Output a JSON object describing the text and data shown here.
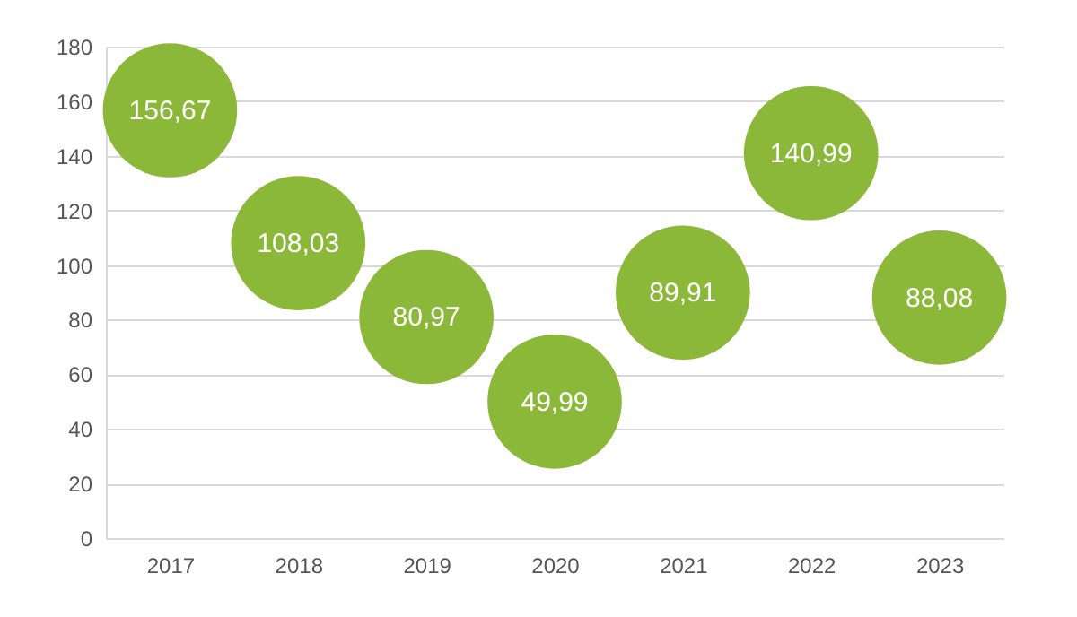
{
  "chart_data": {
    "type": "scatter",
    "categories": [
      "2017",
      "2018",
      "2019",
      "2020",
      "2021",
      "2022",
      "2023"
    ],
    "values": [
      156.67,
      108.03,
      80.97,
      49.99,
      89.91,
      140.99,
      88.08
    ],
    "value_labels": [
      "156,67",
      "108,03",
      "80,97",
      "49,99",
      "89,91",
      "140,99",
      "88,08"
    ],
    "color": "#8cb83a",
    "marker": "circle",
    "ylim": [
      0,
      180
    ],
    "yticks": [
      0,
      20,
      40,
      60,
      80,
      100,
      120,
      140,
      160,
      180
    ],
    "grid": "y"
  }
}
